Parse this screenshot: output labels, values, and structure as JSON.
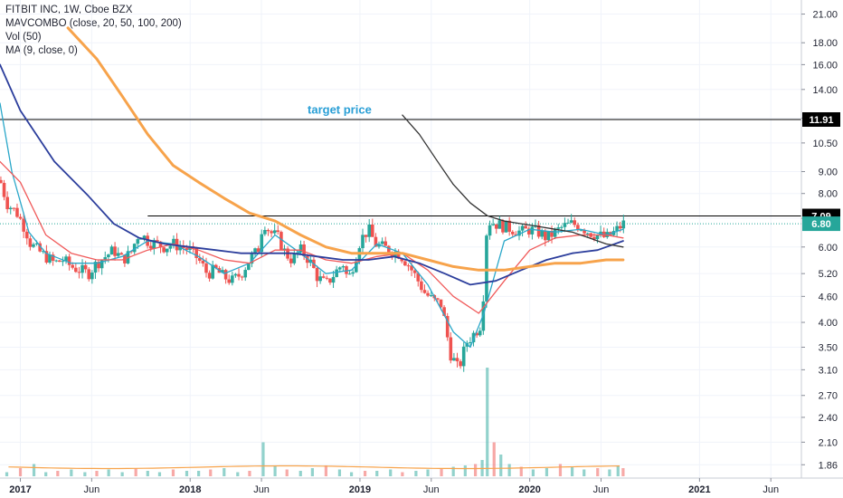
{
  "legend": {
    "line1": "FITBIT INC, 1W, Cboe BZX",
    "line2": "MAVCOMBO (close, 20, 50, 100, 200)",
    "line3": "Vol (50)",
    "line4": "MA (9, close, 0)"
  },
  "colors": {
    "up": "#26a69a",
    "down": "#ef5350",
    "ma20": "#2aa7c9",
    "ma50": "#f05a5a",
    "ma100": "#2c3e9c",
    "ma200": "#f7a34b",
    "ma_dark": "#333333",
    "last_price": "#26a69a",
    "target": "#000000"
  },
  "chart_data": {
    "type": "candlestick",
    "symbol": "FITBIT INC",
    "interval": "1W",
    "exchange": "Cboe BZX",
    "y_scale": "log",
    "ylim": [
      1.8,
      22
    ],
    "y_ticks": [
      "21.00",
      "18.00",
      "16.00",
      "14.00",
      "12.00",
      "10.50",
      "9.00",
      "8.00",
      "7.00",
      "6.00",
      "5.20",
      "4.60",
      "4.00",
      "3.50",
      "3.10",
      "2.70",
      "2.40",
      "2.10",
      "1.86"
    ],
    "x_ticks": [
      {
        "label": "2017",
        "t": 0.0,
        "year": true
      },
      {
        "label": "Jun",
        "t": 0.42,
        "year": false
      },
      {
        "label": "2018",
        "t": 1.0,
        "year": true
      },
      {
        "label": "Jun",
        "t": 1.42,
        "year": false
      },
      {
        "label": "2019",
        "t": 2.0,
        "year": true
      },
      {
        "label": "Jun",
        "t": 2.42,
        "year": false
      },
      {
        "label": "2020",
        "t": 3.0,
        "year": true
      },
      {
        "label": "Jun",
        "t": 3.42,
        "year": false
      },
      {
        "label": "2021",
        "t": 4.0,
        "year": true
      },
      {
        "label": "Jun",
        "t": 4.42,
        "year": false
      }
    ],
    "xlim": [
      -0.12,
      4.6
    ],
    "close_path": [
      [
        -0.12,
        8.6
      ],
      [
        -0.08,
        7.6
      ],
      [
        -0.02,
        7.2
      ],
      [
        0.03,
        6.6
      ],
      [
        0.06,
        6.1
      ],
      [
        0.1,
        5.9
      ],
      [
        0.15,
        5.7
      ],
      [
        0.2,
        5.5
      ],
      [
        0.25,
        5.6
      ],
      [
        0.3,
        5.4
      ],
      [
        0.35,
        5.3
      ],
      [
        0.4,
        5.2
      ],
      [
        0.45,
        5.5
      ],
      [
        0.5,
        5.7
      ],
      [
        0.55,
        5.9
      ],
      [
        0.6,
        5.6
      ],
      [
        0.65,
        5.8
      ],
      [
        0.7,
        6.5
      ],
      [
        0.75,
        6.2
      ],
      [
        0.8,
        6.1
      ],
      [
        0.85,
        6.0
      ],
      [
        0.9,
        6.1
      ],
      [
        0.95,
        6.0
      ],
      [
        1.0,
        5.9
      ],
      [
        1.05,
        5.6
      ],
      [
        1.1,
        5.2
      ],
      [
        1.15,
        5.3
      ],
      [
        1.2,
        5.1
      ],
      [
        1.25,
        5.0
      ],
      [
        1.3,
        5.2
      ],
      [
        1.35,
        5.6
      ],
      [
        1.4,
        5.9
      ],
      [
        1.43,
        6.9
      ],
      [
        1.47,
        6.5
      ],
      [
        1.52,
        6.3
      ],
      [
        1.56,
        5.8
      ],
      [
        1.6,
        5.6
      ],
      [
        1.65,
        5.9
      ],
      [
        1.7,
        5.6
      ],
      [
        1.75,
        5.1
      ],
      [
        1.8,
        4.9
      ],
      [
        1.85,
        5.2
      ],
      [
        1.9,
        5.5
      ],
      [
        1.93,
        5.0
      ],
      [
        1.97,
        5.6
      ],
      [
        2.0,
        6.2
      ],
      [
        2.05,
        6.6
      ],
      [
        2.09,
        6.1
      ],
      [
        2.13,
        6.0
      ],
      [
        2.18,
        5.9
      ],
      [
        2.23,
        5.8
      ],
      [
        2.28,
        5.5
      ],
      [
        2.33,
        5.1
      ],
      [
        2.38,
        4.7
      ],
      [
        2.43,
        4.5
      ],
      [
        2.48,
        4.4
      ],
      [
        2.53,
        3.4
      ],
      [
        2.58,
        3.1
      ],
      [
        2.63,
        3.6
      ],
      [
        2.68,
        3.8
      ],
      [
        2.72,
        4.0
      ],
      [
        2.75,
        6.9
      ],
      [
        2.8,
        6.8
      ],
      [
        2.85,
        6.7
      ],
      [
        2.9,
        6.6
      ],
      [
        2.95,
        6.5
      ],
      [
        3.0,
        6.6
      ],
      [
        3.05,
        6.5
      ],
      [
        3.1,
        6.3
      ],
      [
        3.15,
        6.5
      ],
      [
        3.2,
        6.7
      ],
      [
        3.25,
        6.8
      ],
      [
        3.3,
        6.7
      ],
      [
        3.35,
        6.5
      ],
      [
        3.4,
        6.4
      ],
      [
        3.45,
        6.3
      ],
      [
        3.5,
        6.5
      ],
      [
        3.55,
        6.8
      ]
    ],
    "moving_averages": [
      {
        "name": "MA 20",
        "color": "#2aa7c9",
        "points": [
          [
            -0.12,
            13.0
          ],
          [
            -0.05,
            9.0
          ],
          [
            0.05,
            6.5
          ],
          [
            0.15,
            5.8
          ],
          [
            0.3,
            5.5
          ],
          [
            0.45,
            5.5
          ],
          [
            0.6,
            5.7
          ],
          [
            0.75,
            6.2
          ],
          [
            0.9,
            6.1
          ],
          [
            1.05,
            5.7
          ],
          [
            1.2,
            5.2
          ],
          [
            1.35,
            5.5
          ],
          [
            1.5,
            6.4
          ],
          [
            1.65,
            5.8
          ],
          [
            1.8,
            5.2
          ],
          [
            1.95,
            5.3
          ],
          [
            2.1,
            6.1
          ],
          [
            2.25,
            5.8
          ],
          [
            2.4,
            4.9
          ],
          [
            2.55,
            3.8
          ],
          [
            2.65,
            3.5
          ],
          [
            2.73,
            4.2
          ],
          [
            2.85,
            6.2
          ],
          [
            3.0,
            6.6
          ],
          [
            3.15,
            6.5
          ],
          [
            3.3,
            6.6
          ],
          [
            3.45,
            6.4
          ],
          [
            3.55,
            6.6
          ]
        ]
      },
      {
        "name": "MA 50",
        "color": "#f05a5a",
        "points": [
          [
            -0.12,
            9.5
          ],
          [
            0.0,
            8.5
          ],
          [
            0.15,
            6.4
          ],
          [
            0.3,
            5.8
          ],
          [
            0.45,
            5.6
          ],
          [
            0.6,
            5.6
          ],
          [
            0.75,
            5.9
          ],
          [
            0.9,
            6.1
          ],
          [
            1.05,
            5.9
          ],
          [
            1.2,
            5.6
          ],
          [
            1.35,
            5.5
          ],
          [
            1.5,
            5.9
          ],
          [
            1.65,
            5.9
          ],
          [
            1.8,
            5.6
          ],
          [
            1.95,
            5.5
          ],
          [
            2.1,
            5.7
          ],
          [
            2.25,
            5.8
          ],
          [
            2.4,
            5.3
          ],
          [
            2.55,
            4.6
          ],
          [
            2.7,
            4.2
          ],
          [
            2.85,
            5.0
          ],
          [
            3.0,
            5.9
          ],
          [
            3.15,
            6.3
          ],
          [
            3.3,
            6.4
          ],
          [
            3.45,
            6.4
          ],
          [
            3.55,
            6.3
          ]
        ]
      },
      {
        "name": "MA 100",
        "color": "#2c3e9c",
        "points": [
          [
            -0.12,
            16.0
          ],
          [
            0.0,
            12.5
          ],
          [
            0.2,
            9.5
          ],
          [
            0.4,
            7.9
          ],
          [
            0.55,
            6.8
          ],
          [
            0.7,
            6.3
          ],
          [
            0.85,
            6.1
          ],
          [
            1.0,
            6.0
          ],
          [
            1.15,
            5.9
          ],
          [
            1.3,
            5.8
          ],
          [
            1.45,
            5.8
          ],
          [
            1.6,
            5.8
          ],
          [
            1.75,
            5.7
          ],
          [
            1.9,
            5.6
          ],
          [
            2.05,
            5.6
          ],
          [
            2.2,
            5.7
          ],
          [
            2.35,
            5.5
          ],
          [
            2.5,
            5.2
          ],
          [
            2.65,
            4.9
          ],
          [
            2.8,
            5.0
          ],
          [
            2.95,
            5.3
          ],
          [
            3.1,
            5.6
          ],
          [
            3.25,
            5.8
          ],
          [
            3.4,
            5.9
          ],
          [
            3.55,
            6.2
          ]
        ]
      },
      {
        "name": "MA 200",
        "color": "#f7a34b",
        "points": [
          [
            0.28,
            19.5
          ],
          [
            0.45,
            16.5
          ],
          [
            0.6,
            13.5
          ],
          [
            0.75,
            11.0
          ],
          [
            0.9,
            9.3
          ],
          [
            1.05,
            8.5
          ],
          [
            1.2,
            7.8
          ],
          [
            1.35,
            7.2
          ],
          [
            1.5,
            6.9
          ],
          [
            1.65,
            6.4
          ],
          [
            1.8,
            6.0
          ],
          [
            1.95,
            5.8
          ],
          [
            2.1,
            5.8
          ],
          [
            2.25,
            5.8
          ],
          [
            2.4,
            5.6
          ],
          [
            2.55,
            5.4
          ],
          [
            2.7,
            5.3
          ],
          [
            2.85,
            5.3
          ],
          [
            3.0,
            5.4
          ],
          [
            3.15,
            5.5
          ],
          [
            3.3,
            5.5
          ],
          [
            3.45,
            5.6
          ],
          [
            3.55,
            5.6
          ]
        ]
      },
      {
        "name": "MA dark",
        "color": "#333333",
        "points": [
          [
            2.25,
            12.2
          ],
          [
            2.35,
            11.0
          ],
          [
            2.45,
            9.6
          ],
          [
            2.55,
            8.4
          ],
          [
            2.65,
            7.6
          ],
          [
            2.75,
            7.1
          ],
          [
            2.85,
            6.9
          ],
          [
            2.95,
            6.8
          ],
          [
            3.05,
            6.7
          ],
          [
            3.15,
            6.6
          ],
          [
            3.25,
            6.5
          ],
          [
            3.35,
            6.3
          ],
          [
            3.45,
            6.1
          ],
          [
            3.55,
            6.0
          ]
        ]
      }
    ],
    "horizontal_lines": [
      {
        "label": "11.91",
        "value": 11.91,
        "color": "#000000",
        "x_from": -0.12
      },
      {
        "label": "7.09",
        "value": 7.09,
        "color": "#000000",
        "x_from": 0.75
      }
    ],
    "last_price": {
      "label": "6.80",
      "value": 6.8
    },
    "annotations": [
      {
        "text": "target price",
        "t": 1.88,
        "value": 12.3,
        "color": "#2a9fd6"
      }
    ],
    "volume": {
      "ma_color": "#f7a34b",
      "bars": [
        [
          -0.08,
          0.3
        ],
        [
          0.0,
          0.6
        ],
        [
          0.08,
          0.9
        ],
        [
          0.15,
          0.3
        ],
        [
          0.22,
          0.4
        ],
        [
          0.3,
          0.5
        ],
        [
          0.38,
          0.3
        ],
        [
          0.45,
          0.4
        ],
        [
          0.52,
          0.5
        ],
        [
          0.6,
          0.3
        ],
        [
          0.68,
          0.6
        ],
        [
          0.75,
          0.4
        ],
        [
          0.82,
          0.3
        ],
        [
          0.9,
          0.5
        ],
        [
          0.98,
          0.4
        ],
        [
          1.05,
          0.4
        ],
        [
          1.12,
          0.5
        ],
        [
          1.2,
          0.6
        ],
        [
          1.28,
          0.3
        ],
        [
          1.35,
          0.4
        ],
        [
          1.43,
          2.5
        ],
        [
          1.5,
          0.8
        ],
        [
          1.57,
          0.5
        ],
        [
          1.65,
          0.4
        ],
        [
          1.72,
          0.6
        ],
        [
          1.8,
          0.8
        ],
        [
          1.88,
          0.5
        ],
        [
          1.95,
          0.3
        ],
        [
          2.03,
          0.4
        ],
        [
          2.1,
          0.4
        ],
        [
          2.18,
          0.5
        ],
        [
          2.25,
          0.3
        ],
        [
          2.33,
          0.4
        ],
        [
          2.4,
          0.5
        ],
        [
          2.48,
          0.6
        ],
        [
          2.55,
          0.7
        ],
        [
          2.62,
          0.8
        ],
        [
          2.68,
          0.9
        ],
        [
          2.72,
          1.2
        ],
        [
          2.75,
          8.0
        ],
        [
          2.79,
          2.5
        ],
        [
          2.83,
          1.6
        ],
        [
          2.88,
          0.9
        ],
        [
          2.95,
          0.7
        ],
        [
          3.02,
          0.5
        ],
        [
          3.1,
          0.6
        ],
        [
          3.18,
          0.9
        ],
        [
          3.25,
          0.7
        ],
        [
          3.32,
          0.5
        ],
        [
          3.4,
          0.6
        ],
        [
          3.47,
          0.5
        ],
        [
          3.52,
          0.8
        ],
        [
          3.55,
          0.6
        ]
      ]
    }
  }
}
